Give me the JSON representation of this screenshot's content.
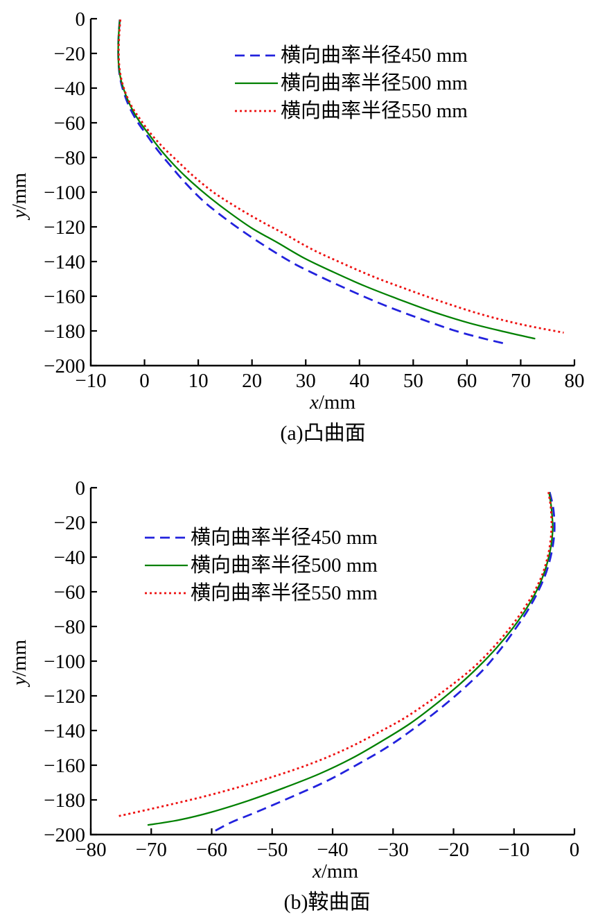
{
  "chart_data": [
    {
      "type": "line",
      "caption": "(a)凸曲面",
      "xlabel_var": "x",
      "xlabel_unit": "/mm",
      "ylabel_var": "y",
      "ylabel_unit": "/mm",
      "xlim": [
        -10,
        80
      ],
      "ylim": [
        -200,
        0
      ],
      "grid": false,
      "legend_position": "upper-right-inside",
      "xticks": [
        -10,
        0,
        10,
        20,
        30,
        40,
        50,
        60,
        70,
        80
      ],
      "xtick_labels": [
        "−10",
        "0",
        "10",
        "20",
        "30",
        "40",
        "50",
        "60",
        "70",
        "80"
      ],
      "yticks": [
        0,
        -20,
        -40,
        -60,
        -80,
        -100,
        -120,
        -140,
        -160,
        -180,
        -200
      ],
      "ytick_labels": [
        "0",
        "−20",
        "−40",
        "−60",
        "−80",
        "−100",
        "−120",
        "−140",
        "−160",
        "−180",
        "−200"
      ],
      "legend": [
        {
          "label": "横向曲率半径450 mm",
          "color": "#2222dd",
          "dash": "dashed"
        },
        {
          "label": "横向曲率半径500 mm",
          "color": "#008000",
          "dash": "solid"
        },
        {
          "label": "横向曲率半径550 mm",
          "color": "#ee1111",
          "dash": "dotted"
        }
      ],
      "series": [
        {
          "name": "横向曲率半径450 mm",
          "color": "#2222dd",
          "dash": "dashed",
          "points": [
            [
              -4.6,
              -0.5
            ],
            [
              -4.8,
              -9
            ],
            [
              -4.9,
              -18
            ],
            [
              -4.8,
              -27
            ],
            [
              -4.5,
              -35
            ],
            [
              -3.8,
              -43
            ],
            [
              -2.8,
              -51
            ],
            [
              -1.4,
              -59
            ],
            [
              0.4,
              -67
            ],
            [
              2.5,
              -76
            ],
            [
              4.9,
              -85
            ],
            [
              7.7,
              -95
            ],
            [
              10.9,
              -105
            ],
            [
              14.5,
              -114
            ],
            [
              18.5,
              -123
            ],
            [
              22.9,
              -132
            ],
            [
              27.7,
              -141
            ],
            [
              32.9,
              -149
            ],
            [
              38.5,
              -157
            ],
            [
              44.5,
              -165
            ],
            [
              50.9,
              -172.5
            ],
            [
              57.4,
              -179.5
            ],
            [
              62.6,
              -184
            ],
            [
              67.3,
              -187.5
            ]
          ]
        },
        {
          "name": "横向曲率半径500 mm",
          "color": "#008000",
          "dash": "solid",
          "points": [
            [
              -4.6,
              -0.5
            ],
            [
              -4.8,
              -9
            ],
            [
              -4.9,
              -18
            ],
            [
              -4.8,
              -27
            ],
            [
              -4.4,
              -35
            ],
            [
              -3.6,
              -43
            ],
            [
              -2.5,
              -51
            ],
            [
              -1.0,
              -59
            ],
            [
              0.9,
              -67
            ],
            [
              3.1,
              -76
            ],
            [
              5.7,
              -85
            ],
            [
              8.7,
              -94
            ],
            [
              12.1,
              -103
            ],
            [
              15.9,
              -112
            ],
            [
              20.1,
              -121
            ],
            [
              24.7,
              -129
            ],
            [
              29.7,
              -138
            ],
            [
              35.1,
              -146
            ],
            [
              40.9,
              -154
            ],
            [
              47.1,
              -161.5
            ],
            [
              53.7,
              -169
            ],
            [
              60.5,
              -175.5
            ],
            [
              67.0,
              -180.5
            ],
            [
              72.7,
              -184.5
            ]
          ]
        },
        {
          "name": "横向曲率半径550 mm",
          "color": "#ee1111",
          "dash": "dotted",
          "points": [
            [
              -4.5,
              -0.5
            ],
            [
              -4.7,
              -9
            ],
            [
              -4.8,
              -18
            ],
            [
              -4.7,
              -27
            ],
            [
              -4.3,
              -35
            ],
            [
              -3.5,
              -43
            ],
            [
              -2.3,
              -51
            ],
            [
              -0.8,
              -58
            ],
            [
              1.1,
              -66
            ],
            [
              3.4,
              -74
            ],
            [
              6.1,
              -82
            ],
            [
              9.2,
              -91
            ],
            [
              12.8,
              -100
            ],
            [
              16.8,
              -108
            ],
            [
              21.2,
              -116
            ],
            [
              26.0,
              -124
            ],
            [
              31.2,
              -133
            ],
            [
              36.8,
              -141
            ],
            [
              42.8,
              -149
            ],
            [
              49.3,
              -156.5
            ],
            [
              56.1,
              -164
            ],
            [
              63.3,
              -171
            ],
            [
              70.5,
              -176.5
            ],
            [
              78.0,
              -181
            ]
          ]
        }
      ]
    },
    {
      "type": "line",
      "caption": "(b)鞍曲面",
      "xlabel_var": "x",
      "xlabel_unit": "/mm",
      "ylabel_var": "y",
      "ylabel_unit": "/mm",
      "xlim": [
        -80,
        0
      ],
      "ylim": [
        -200,
        0
      ],
      "grid": false,
      "legend_position": "upper-left-inside",
      "xticks": [
        -80,
        -70,
        -60,
        -50,
        -40,
        -30,
        -20,
        -10,
        0
      ],
      "xtick_labels": [
        "−80",
        "−70",
        "−60",
        "−50",
        "−40",
        "−30",
        "−20",
        "−10",
        "0"
      ],
      "yticks": [
        0,
        -20,
        -40,
        -60,
        -80,
        -100,
        -120,
        -140,
        -160,
        -180,
        -200
      ],
      "ytick_labels": [
        "0",
        "−20",
        "−40",
        "−60",
        "−80",
        "−100",
        "−120",
        "−140",
        "−160",
        "−180",
        "−200"
      ],
      "legend": [
        {
          "label": "横向曲率半径450 mm",
          "color": "#2222dd",
          "dash": "dashed"
        },
        {
          "label": "横向曲率半径500 mm",
          "color": "#008000",
          "dash": "solid"
        },
        {
          "label": "横向曲率半径550 mm",
          "color": "#ee1111",
          "dash": "dotted"
        }
      ],
      "series": [
        {
          "name": "横向曲率半径450 mm",
          "color": "#2222dd",
          "dash": "dashed",
          "points": [
            [
              -4.1,
              -2.5
            ],
            [
              -3.5,
              -12
            ],
            [
              -3.3,
              -24
            ],
            [
              -3.7,
              -36
            ],
            [
              -4.6,
              -48
            ],
            [
              -5.9,
              -59
            ],
            [
              -7.6,
              -70
            ],
            [
              -9.7,
              -81
            ],
            [
              -12.2,
              -93
            ],
            [
              -15.1,
              -105
            ],
            [
              -18.4,
              -116
            ],
            [
              -22.1,
              -127
            ],
            [
              -26.2,
              -138
            ],
            [
              -30.7,
              -149
            ],
            [
              -35.6,
              -159
            ],
            [
              -40.9,
              -169
            ],
            [
              -46.6,
              -178
            ],
            [
              -52.6,
              -187
            ],
            [
              -56.8,
              -193
            ],
            [
              -59.8,
              -198.5
            ]
          ]
        },
        {
          "name": "横向曲率半径500 mm",
          "color": "#008000",
          "dash": "solid",
          "points": [
            [
              -4.2,
              -2.5
            ],
            [
              -3.8,
              -12
            ],
            [
              -3.6,
              -24
            ],
            [
              -4.0,
              -36
            ],
            [
              -4.9,
              -48
            ],
            [
              -6.2,
              -59
            ],
            [
              -8.0,
              -70
            ],
            [
              -10.2,
              -81
            ],
            [
              -12.8,
              -92
            ],
            [
              -15.8,
              -103
            ],
            [
              -19.2,
              -114
            ],
            [
              -23.0,
              -125
            ],
            [
              -27.2,
              -136
            ],
            [
              -31.8,
              -146
            ],
            [
              -36.8,
              -156
            ],
            [
              -42.2,
              -165
            ],
            [
              -48.0,
              -173
            ],
            [
              -54.0,
              -180.5
            ],
            [
              -60.0,
              -187
            ],
            [
              -65.3,
              -191.5
            ],
            [
              -70.6,
              -194.5
            ]
          ]
        },
        {
          "name": "横向曲率半径550 mm",
          "color": "#ee1111",
          "dash": "dotted",
          "points": [
            [
              -4.3,
              -2.5
            ],
            [
              -3.9,
              -12
            ],
            [
              -3.8,
              -24
            ],
            [
              -4.2,
              -36
            ],
            [
              -5.1,
              -48
            ],
            [
              -6.5,
              -59
            ],
            [
              -8.4,
              -70
            ],
            [
              -10.7,
              -81
            ],
            [
              -13.4,
              -92
            ],
            [
              -16.5,
              -103
            ],
            [
              -20.0,
              -113
            ],
            [
              -23.9,
              -123
            ],
            [
              -28.2,
              -133
            ],
            [
              -32.9,
              -142
            ],
            [
              -38.0,
              -151
            ],
            [
              -43.5,
              -159
            ],
            [
              -49.3,
              -166
            ],
            [
              -55.4,
              -172.5
            ],
            [
              -61.8,
              -178.5
            ],
            [
              -68.5,
              -184
            ],
            [
              -75.6,
              -189.5
            ]
          ]
        }
      ]
    }
  ]
}
